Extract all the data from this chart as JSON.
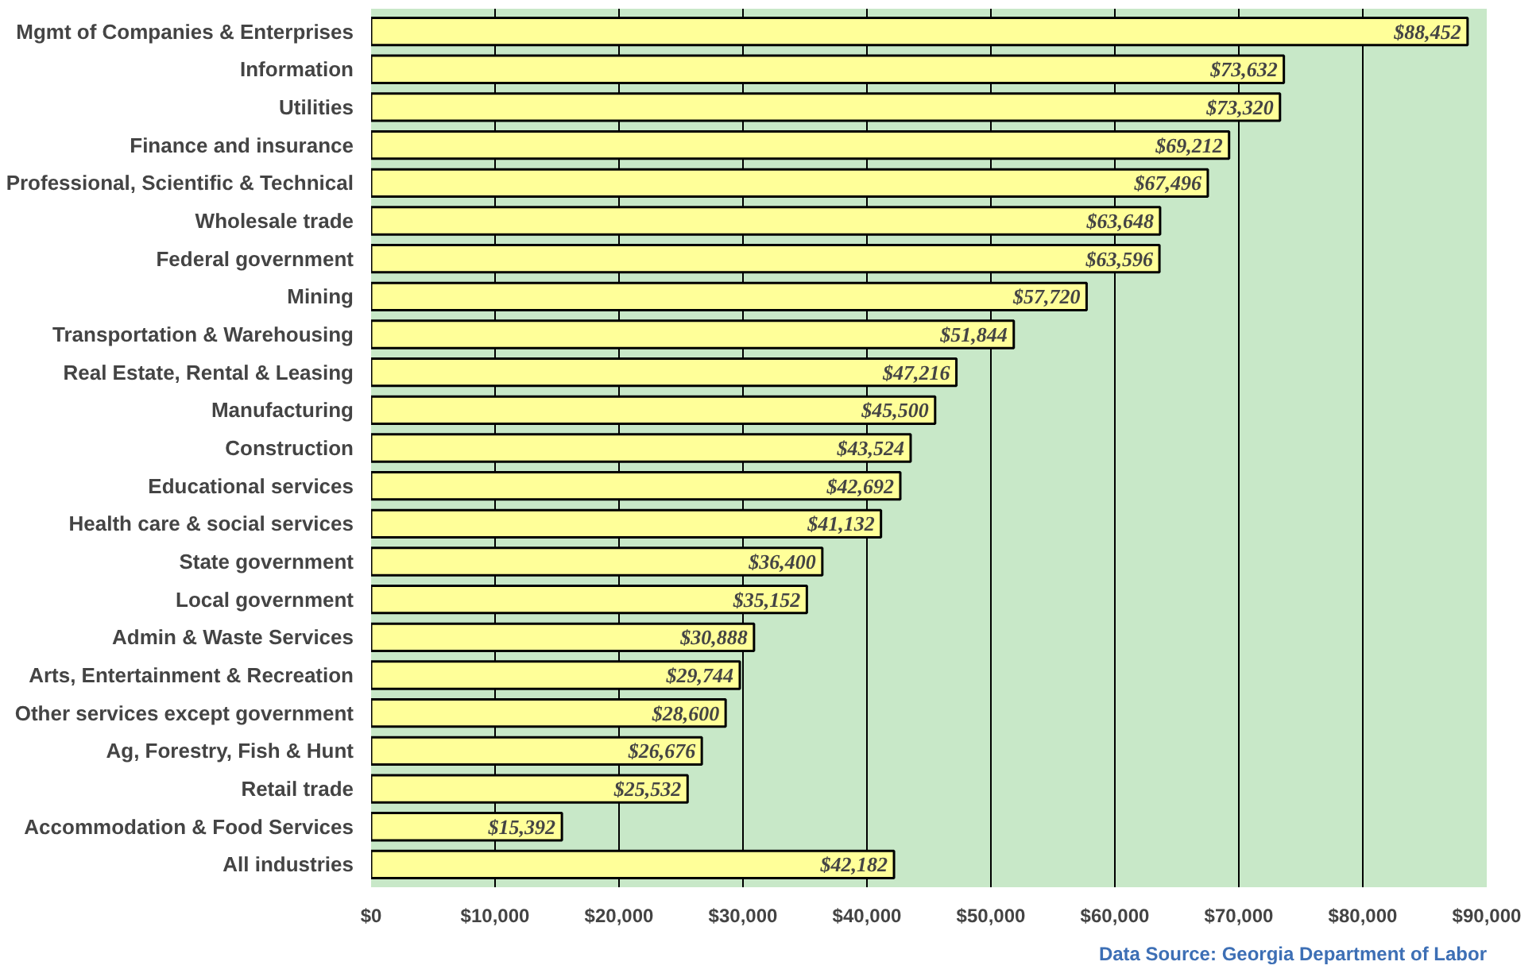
{
  "chart_data": {
    "type": "bar",
    "orientation": "horizontal",
    "categories": [
      "Mgmt of Companies & Enterprises",
      "Information",
      "Utilities",
      "Finance and insurance",
      "Professional, Scientific & Technical",
      "Wholesale trade",
      "Federal government",
      "Mining",
      "Transportation & Warehousing",
      "Real Estate, Rental & Leasing",
      "Manufacturing",
      "Construction",
      "Educational services",
      "Health care & social services",
      "State government",
      "Local government",
      "Admin & Waste Services",
      "Arts, Entertainment & Recreation",
      "Other services except government",
      "Ag, Forestry, Fish & Hunt",
      "Retail trade",
      "Accommodation & Food Services",
      "All industries"
    ],
    "values": [
      88452,
      73632,
      73320,
      69212,
      67496,
      63648,
      63596,
      57720,
      51844,
      47216,
      45500,
      43524,
      42692,
      41132,
      36400,
      35152,
      30888,
      29744,
      28600,
      26676,
      25532,
      15392,
      42182
    ],
    "value_labels": [
      "$88,452",
      "$73,632",
      "$73,320",
      "$69,212",
      "$67,496",
      "$63,648",
      "$63,596",
      "$57,720",
      "$51,844",
      "$47,216",
      "$45,500",
      "$43,524",
      "$42,692",
      "$41,132",
      "$36,400",
      "$35,152",
      "$30,888",
      "$29,744",
      "$28,600",
      "$26,676",
      "$25,532",
      "$15,392",
      "$42,182"
    ],
    "color": "#ffff99",
    "xlim": [
      0,
      90000
    ],
    "xticks": [
      {
        "value": 0,
        "label": "$0"
      },
      {
        "value": 10000,
        "label": "$10,000"
      },
      {
        "value": 20000,
        "label": "$20,000"
      },
      {
        "value": 30000,
        "label": "$30,000"
      },
      {
        "value": 40000,
        "label": "$40,000"
      },
      {
        "value": 50000,
        "label": "$50,000"
      },
      {
        "value": 60000,
        "label": "$60,000"
      },
      {
        "value": 70000,
        "label": "$70,000"
      },
      {
        "value": 80000,
        "label": "$80,000"
      },
      {
        "value": 90000,
        "label": "$90,000"
      }
    ],
    "grid": "x",
    "annotations": [
      "Data Source: Georgia Department of Labor"
    ]
  }
}
